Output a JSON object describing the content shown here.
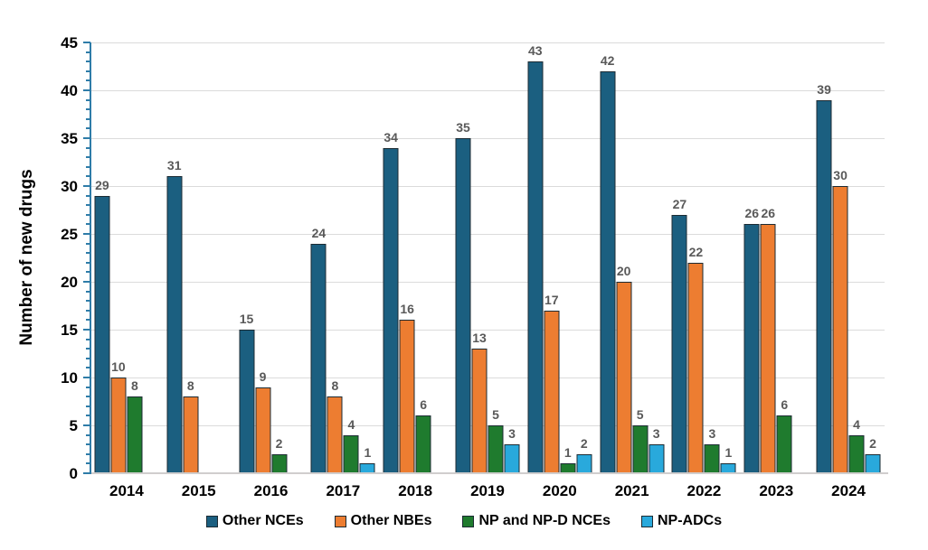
{
  "chart_data": {
    "type": "bar",
    "title": "",
    "xlabel": "",
    "ylabel": "Number of new drugs",
    "ylim": [
      0,
      45
    ],
    "ytick_step": 5,
    "minor_tick_step": 1,
    "ytick_labels": [
      "0",
      "5",
      "10",
      "15",
      "20",
      "25",
      "30",
      "35",
      "40",
      "45"
    ],
    "grid": "horizontal gridlines every 5 units",
    "legend_position": "bottom-center",
    "categories": [
      "2014",
      "2015",
      "2016",
      "2017",
      "2018",
      "2019",
      "2020",
      "2021",
      "2022",
      "2023",
      "2024"
    ],
    "series": [
      {
        "name": "Other NCEs",
        "color": "#1B5F80",
        "values": [
          29,
          31,
          15,
          24,
          34,
          35,
          43,
          42,
          27,
          26,
          39
        ]
      },
      {
        "name": "Other NBEs",
        "color": "#ED7D31",
        "values": [
          10,
          8,
          9,
          8,
          16,
          13,
          17,
          20,
          22,
          26,
          30
        ]
      },
      {
        "name": "NP and NP-D NCEs",
        "color": "#1F7B2E",
        "values": [
          8,
          0,
          2,
          4,
          6,
          5,
          1,
          5,
          3,
          6,
          4
        ]
      },
      {
        "name": "NP-ADCs",
        "color": "#29A9DC",
        "values": [
          0,
          0,
          0,
          1,
          0,
          3,
          2,
          3,
          1,
          0,
          2
        ]
      }
    ],
    "data_label_rule": "value shown above each bar; bars with value 0 are omitted"
  },
  "styles": {
    "axis_color": "#2E7CA8",
    "x_axis_color": "#D0CECE",
    "grid_color": "#DBDBDB",
    "bar_border_color": "#1C2B33",
    "data_label_color": "#595959",
    "background": "#FFFFFF"
  }
}
